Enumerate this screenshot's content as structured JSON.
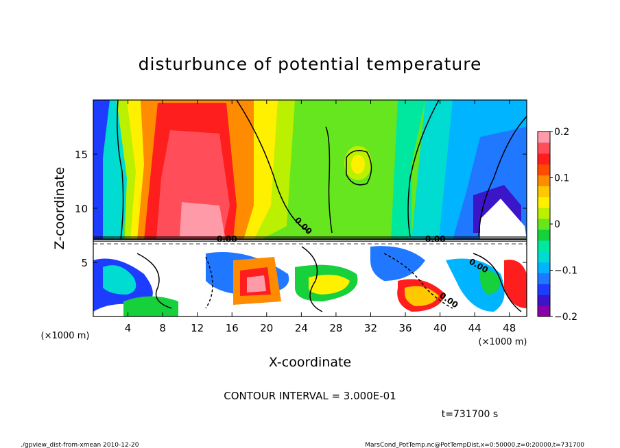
{
  "chart_data": {
    "type": "heatmap",
    "title": "disturbunce of potential temperature",
    "xlabel": "X-coordinate",
    "ylabel": "Z-coordinate",
    "x_unit_left": "(×1000 m)",
    "x_unit_right": "(×1000 m)",
    "x_ticks": [
      4,
      8,
      12,
      16,
      20,
      24,
      28,
      32,
      36,
      40,
      44,
      48
    ],
    "y_ticks": [
      5,
      10,
      15
    ],
    "xlim": [
      0,
      50
    ],
    "ylim": [
      0,
      20
    ],
    "colorbar": {
      "ticks": [
        "0.2",
        "0.1",
        "0",
        "−0.1",
        "−0.2"
      ],
      "tick_values": [
        0.2,
        0.1,
        0,
        -0.1,
        -0.2
      ],
      "range": [
        -0.2,
        0.2
      ],
      "colors": [
        "#8a00a8",
        "#3a16c8",
        "#1e3cff",
        "#1f78ff",
        "#00b4ff",
        "#00dcd2",
        "#00e8a0",
        "#16d03c",
        "#66e61e",
        "#bbf000",
        "#fff000",
        "#ffc800",
        "#ff8c00",
        "#ff4b00",
        "#ff1e1e",
        "#ff4d5a",
        "#ff9aa8"
      ]
    },
    "contour_label": "0.00",
    "contour_interval_text": "CONTOUR INTERVAL = 3.000E-01",
    "time_text": "t=731700 s"
  },
  "footer": {
    "left": "./gpview_dist-from-xmean 2010-12-20",
    "right": "MarsCond_PotTemp.nc@PotTempDist,x=0:50000,z=0:20000,t=731700"
  }
}
